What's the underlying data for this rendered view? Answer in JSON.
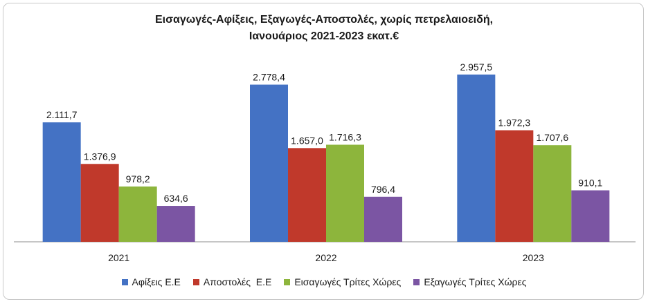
{
  "chart_data": {
    "type": "bar",
    "title_line1": "Εισαγωγές-Αφίξεις, Εξαγωγές-Αποστολές, χωρίς πετρελαιοειδή,",
    "title_line2": "Ιανουάριος 2021-2023 εκατ.€",
    "categories": [
      "2021",
      "2022",
      "2023"
    ],
    "series": [
      {
        "name": "Αφίξεις Ε.Ε",
        "color": "#4472C4",
        "values": [
          2111.7,
          2778.4,
          2957.5
        ],
        "labels": [
          "2.111,7",
          "2.778,4",
          "2.957,5"
        ]
      },
      {
        "name": "Αποστολές  Ε.Ε",
        "color": "#C0392B",
        "values": [
          1376.9,
          1657.0,
          1972.3
        ],
        "labels": [
          "1.376,9",
          "1.657,0",
          "1.972,3"
        ]
      },
      {
        "name": "Εισαγωγές Τρίτες Χώρες",
        "color": "#8DB53C",
        "values": [
          978.2,
          1716.3,
          1707.6
        ],
        "labels": [
          "978,2",
          "1.716,3",
          "1.707,6"
        ]
      },
      {
        "name": "Εξαγωγές Τρίτες Χώρες",
        "color": "#7B55A3",
        "values": [
          634.6,
          796.4,
          910.1
        ],
        "labels": [
          "634,6",
          "796,4",
          "910,1"
        ]
      }
    ],
    "ylim": [
      0,
      3200
    ],
    "grid": false,
    "legend_position": "bottom"
  }
}
